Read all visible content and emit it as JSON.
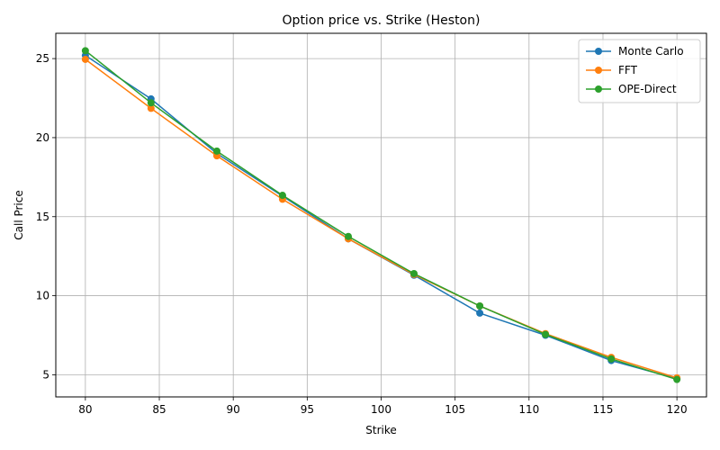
{
  "chart_data": {
    "type": "line",
    "title": "Option price vs. Strike (Heston)",
    "xlabel": "Strike",
    "ylabel": "Call Price",
    "xlim": [
      78,
      122
    ],
    "ylim": [
      3.6,
      26.6
    ],
    "x_ticks": [
      80,
      85,
      90,
      95,
      100,
      105,
      110,
      115,
      120
    ],
    "y_ticks": [
      5,
      10,
      15,
      20,
      25
    ],
    "grid": true,
    "legend_position": "top-right",
    "x": [
      80,
      84.44,
      88.89,
      93.33,
      97.78,
      102.22,
      106.67,
      111.11,
      115.56,
      120
    ],
    "series": [
      {
        "name": "Monte Carlo",
        "color": "#1f77b4",
        "values": [
          25.2,
          22.45,
          19.0,
          16.3,
          13.6,
          11.3,
          8.9,
          7.5,
          5.9,
          4.75
        ]
      },
      {
        "name": "FFT",
        "color": "#ff7f0e",
        "values": [
          24.95,
          21.85,
          18.85,
          16.1,
          13.6,
          11.35,
          9.35,
          7.6,
          6.1,
          4.8
        ]
      },
      {
        "name": "OPE-Direct",
        "color": "#2ca02c",
        "values": [
          25.5,
          22.2,
          19.15,
          16.35,
          13.75,
          11.4,
          9.35,
          7.55,
          6.0,
          4.7
        ]
      }
    ]
  }
}
